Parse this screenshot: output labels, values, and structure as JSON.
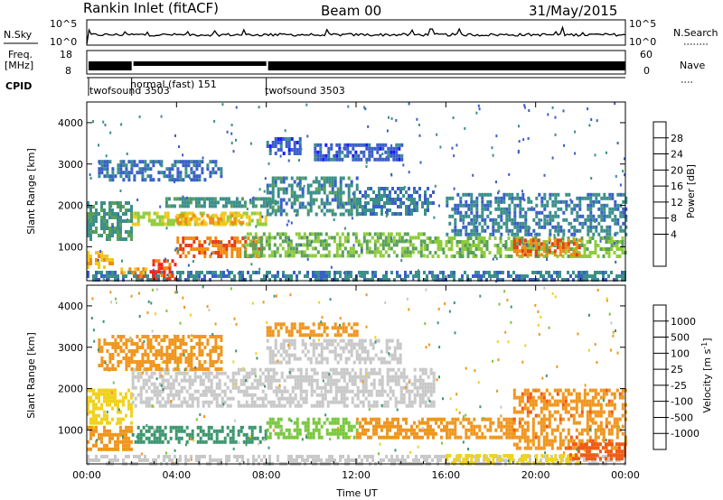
{
  "header": {
    "station": "Rankin Inlet (fitACF)",
    "beam": "Beam 00",
    "date": "31/May/2015"
  },
  "strip_panels": {
    "nsky_label": "N.Sky",
    "nsky_ticks": [
      "10^5",
      "10^0"
    ],
    "nsearch_label": "N.Search",
    "nsearch_ticks": [
      "10^5",
      "10^0"
    ],
    "freq_label_1": "Freq.",
    "freq_label_2": "[MHz]",
    "freq_ticks": [
      "18",
      "8"
    ],
    "nave_label": "Nave",
    "nave_ticks": [
      "60",
      "0"
    ],
    "cpid_label": "CPID",
    "cpid_segments": [
      {
        "label": "twofsound 3503",
        "start_hour": 0.0,
        "end_hour": 2.0
      },
      {
        "label": "normal (fast) 151",
        "start_hour": 2.0,
        "end_hour": 8.0
      },
      {
        "label": "twofsound 3503",
        "start_hour": 8.0,
        "end_hour": 24.0
      }
    ]
  },
  "chart_data": [
    {
      "type": "heatmap",
      "name": "power",
      "ylabel": "Slant Range [km]",
      "xlabel": "",
      "colorbar_label": "Power [dB]",
      "colorbar_ticks": [
        "28",
        "24",
        "20",
        "16",
        "12",
        "8",
        "4"
      ],
      "colorbar_levels": [
        0,
        4,
        8,
        12,
        16,
        20,
        24,
        28,
        30
      ],
      "colorbar_colors": [
        "#1a1aff",
        "#3a5fc8",
        "#3c8f8a",
        "#5aa05a",
        "#8fcc3c",
        "#f0c81e",
        "#f08c14",
        "#e83c14",
        "#ff1e1e"
      ],
      "x_ticks": [
        "00:00",
        "04:00",
        "08:00",
        "12:00",
        "16:00",
        "20:00",
        "00:00"
      ],
      "x_range_hours": [
        0,
        24
      ],
      "y_ticks": [
        "4000",
        "3000",
        "2000",
        "1000"
      ],
      "y_range_km": [
        180,
        4500
      ],
      "bands": [
        {
          "x0": 0.0,
          "x1": 24.0,
          "y0": 200,
          "y1": 420,
          "value": 9
        },
        {
          "x0": 0.0,
          "x1": 1.2,
          "y0": 500,
          "y1": 900,
          "value": 24
        },
        {
          "x0": 1.5,
          "x1": 2.6,
          "y0": 300,
          "y1": 500,
          "value": 26
        },
        {
          "x0": 2.8,
          "x1": 4.0,
          "y0": 250,
          "y1": 700,
          "value": 29
        },
        {
          "x0": 4.0,
          "x1": 7.8,
          "y0": 800,
          "y1": 1250,
          "value": 27
        },
        {
          "x0": 2.0,
          "x1": 8.0,
          "y0": 1550,
          "y1": 1850,
          "value": 20
        },
        {
          "x0": 4.0,
          "x1": 7.0,
          "y0": 1600,
          "y1": 1800,
          "value": 24
        },
        {
          "x0": 0.0,
          "x1": 2.0,
          "y0": 1200,
          "y1": 2100,
          "value": 11
        },
        {
          "x0": 3.5,
          "x1": 8.5,
          "y0": 2000,
          "y1": 2200,
          "value": 11
        },
        {
          "x0": 8.0,
          "x1": 12.0,
          "y0": 1800,
          "y1": 2700,
          "value": 10
        },
        {
          "x0": 12.0,
          "x1": 15.5,
          "y0": 1800,
          "y1": 2450,
          "value": 9
        },
        {
          "x0": 0.5,
          "x1": 6.0,
          "y0": 2600,
          "y1": 3100,
          "value": 7
        },
        {
          "x0": 7.0,
          "x1": 15.0,
          "y0": 800,
          "y1": 1350,
          "value": 16
        },
        {
          "x0": 15.0,
          "x1": 24.0,
          "y0": 800,
          "y1": 1250,
          "value": 17
        },
        {
          "x0": 19.0,
          "x1": 22.0,
          "y0": 850,
          "y1": 1200,
          "value": 27
        },
        {
          "x0": 16.0,
          "x1": 24.0,
          "y0": 1300,
          "y1": 2300,
          "value": 9
        },
        {
          "x0": 10.0,
          "x1": 14.0,
          "y0": 3100,
          "y1": 3500,
          "value": 6
        },
        {
          "x0": 8.0,
          "x1": 9.5,
          "y0": 3300,
          "y1": 3650,
          "value": 6
        }
      ]
    },
    {
      "type": "heatmap",
      "name": "velocity",
      "ylabel": "Slant Range [km]",
      "xlabel": "Time UT",
      "colorbar_label": "Velocity [m s^-1]",
      "colorbar_ticks": [
        "1000",
        "500",
        "100",
        "25",
        "-25",
        "-100",
        "-500",
        "-1000"
      ],
      "colorbar_levels": [
        1200,
        1000,
        500,
        100,
        25,
        -25,
        -100,
        -500,
        -1000,
        -1200
      ],
      "colorbar_colors": [
        "#1e32c8",
        "#2864aa",
        "#3c966e",
        "#78c83c",
        "#c8c8c8",
        "#f0d21e",
        "#f0961e",
        "#f05a14",
        "#f01e1e"
      ],
      "x_ticks": [
        "00:00",
        "04:00",
        "08:00",
        "12:00",
        "16:00",
        "20:00",
        "00:00"
      ],
      "x_range_hours": [
        0,
        24
      ],
      "y_ticks": [
        "4000",
        "3000",
        "2000",
        "1000"
      ],
      "y_range_km": [
        180,
        4500
      ],
      "bands": [
        {
          "x0": 0.0,
          "x1": 24.0,
          "y0": 200,
          "y1": 400,
          "value": 0
        },
        {
          "x0": 16.0,
          "x1": 22.0,
          "y0": 200,
          "y1": 420,
          "value": -60
        },
        {
          "x0": 0.0,
          "x1": 2.0,
          "y0": 500,
          "y1": 1100,
          "value": -300
        },
        {
          "x0": 2.0,
          "x1": 8.0,
          "y0": 700,
          "y1": 1100,
          "value": 150
        },
        {
          "x0": 8.0,
          "x1": 12.0,
          "y0": 800,
          "y1": 1300,
          "value": 70
        },
        {
          "x0": 0.0,
          "x1": 2.0,
          "y0": 1200,
          "y1": 2000,
          "value": -60
        },
        {
          "x0": 2.0,
          "x1": 15.5,
          "y0": 1600,
          "y1": 2500,
          "value": 0
        },
        {
          "x0": 12.0,
          "x1": 16.0,
          "y0": 800,
          "y1": 1300,
          "value": -300
        },
        {
          "x0": 16.0,
          "x1": 19.0,
          "y0": 800,
          "y1": 1300,
          "value": -250
        },
        {
          "x0": 19.0,
          "x1": 24.0,
          "y0": 600,
          "y1": 2000,
          "value": -400
        },
        {
          "x0": 21.5,
          "x1": 24.0,
          "y0": 300,
          "y1": 700,
          "value": -700
        },
        {
          "x0": 0.5,
          "x1": 6.0,
          "y0": 2500,
          "y1": 3300,
          "value": -250
        },
        {
          "x0": 8.0,
          "x1": 14.0,
          "y0": 2600,
          "y1": 3200,
          "value": 0
        },
        {
          "x0": 8.0,
          "x1": 12.0,
          "y0": 3300,
          "y1": 3600,
          "value": -150
        }
      ]
    }
  ]
}
